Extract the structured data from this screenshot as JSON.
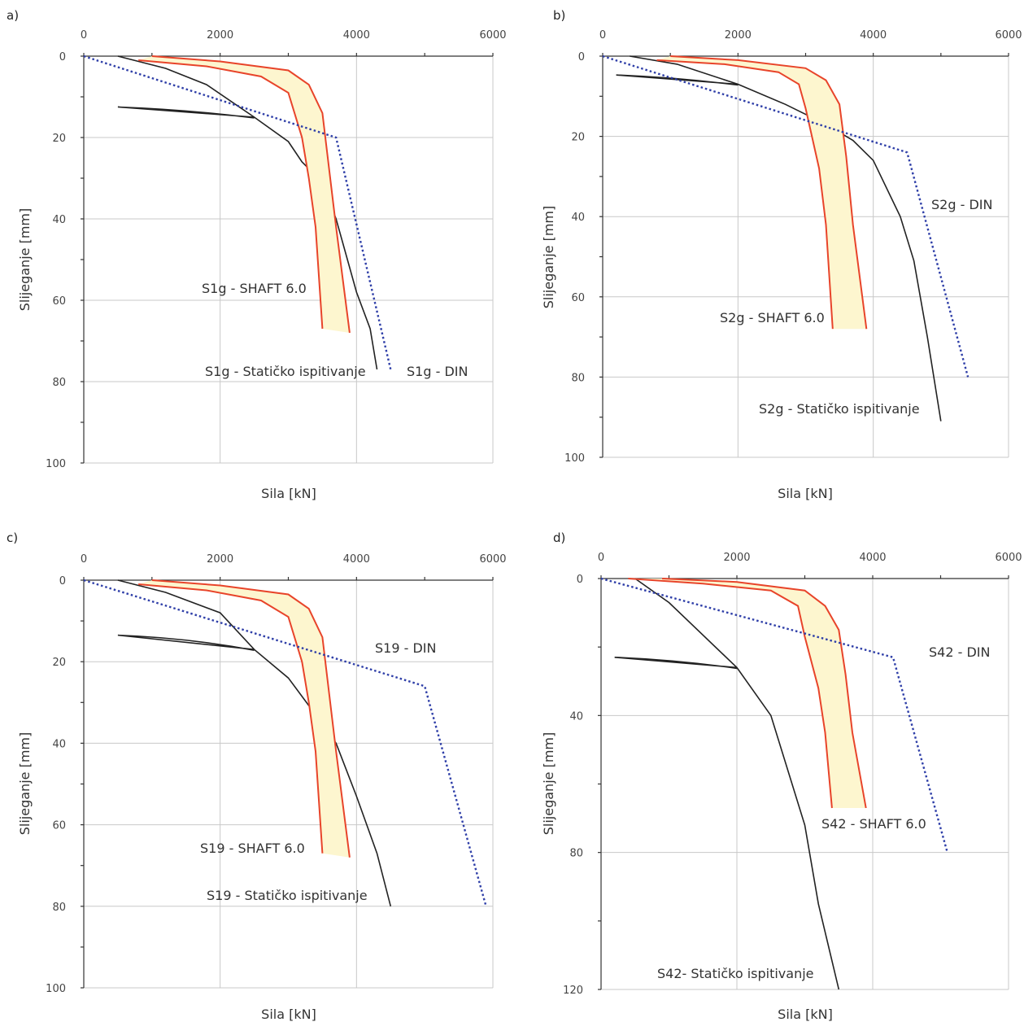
{
  "chart_data": [
    {
      "type": "line",
      "panel_label": "a)",
      "xlabel": "Sila [kN]",
      "ylabel": "Slijeganje [mm]",
      "xlim": [
        0,
        6000
      ],
      "ylim": [
        0,
        100
      ],
      "x_ticks": [
        "0",
        "2000",
        "4000",
        "6000"
      ],
      "y_ticks": [
        "0",
        "20",
        "40",
        "60",
        "80",
        "100"
      ],
      "y_inverted": true,
      "grid": true,
      "colors": {
        "static": "#222222",
        "shaft": "#e8442a",
        "din": "#2f3fa8",
        "band": "#fdf6cf"
      },
      "series": [
        {
          "name": "S1g - Statičko ispitivanje",
          "style": "solid",
          "color": "#222222",
          "points": [
            [
              500,
              0
            ],
            [
              1200,
              3
            ],
            [
              1800,
              7
            ],
            [
              2500,
              15
            ],
            [
              3000,
              21
            ],
            [
              3200,
              26
            ],
            [
              3500,
              31
            ],
            [
              3700,
              40
            ],
            [
              4000,
              58
            ],
            [
              4200,
              67
            ],
            [
              4300,
              77
            ]
          ],
          "unload": [
            [
              2500,
              15
            ],
            [
              500,
              12.5
            ],
            [
              2500,
              15
            ]
          ]
        },
        {
          "name": "S1g - SHAFT 6.0",
          "style": "solid",
          "color": "#e8442a",
          "lower": [
            [
              800,
              1
            ],
            [
              1800,
              2.5
            ],
            [
              2600,
              5
            ],
            [
              3000,
              9
            ],
            [
              3200,
              20
            ],
            [
              3300,
              30
            ],
            [
              3400,
              42
            ],
            [
              3500,
              67
            ]
          ],
          "upper": [
            [
              1000,
              0
            ],
            [
              2000,
              1.3
            ],
            [
              3000,
              3.5
            ],
            [
              3300,
              7
            ],
            [
              3500,
              14
            ],
            [
              3600,
              28
            ],
            [
              3700,
              42
            ],
            [
              3900,
              68
            ]
          ]
        },
        {
          "name": "S1g - DIN",
          "style": "dotted",
          "color": "#2f3fa8",
          "points": [
            [
              0,
              0
            ],
            [
              3700,
              20
            ],
            [
              4500,
              77
            ]
          ]
        }
      ],
      "annotations": [
        "S1g - SHAFT 6.0",
        "S1g - Statičko ispitivanje",
        "S1g - DIN"
      ]
    },
    {
      "type": "line",
      "panel_label": "b)",
      "xlabel": "Sila [kN]",
      "ylabel": "Slijeganje [mm]",
      "xlim": [
        0,
        6000
      ],
      "ylim": [
        0,
        100
      ],
      "x_ticks": [
        "0",
        "2000",
        "4000",
        "6000"
      ],
      "y_ticks": [
        "0",
        "20",
        "40",
        "60",
        "80",
        "100"
      ],
      "y_inverted": true,
      "grid": true,
      "series": [
        {
          "name": "S2g - Statičko ispitivanje",
          "style": "solid",
          "color": "#222222",
          "points": [
            [
              400,
              0
            ],
            [
              1100,
              2
            ],
            [
              2000,
              7
            ],
            [
              2700,
              12
            ],
            [
              3300,
              17
            ],
            [
              3700,
              21
            ],
            [
              4000,
              26
            ],
            [
              4400,
              40
            ],
            [
              4600,
              51
            ],
            [
              4800,
              70
            ],
            [
              5000,
              91
            ]
          ],
          "unload": [
            [
              2000,
              7
            ],
            [
              200,
              4.7
            ],
            [
              2000,
              7
            ]
          ]
        },
        {
          "name": "S2g - SHAFT 6.0",
          "style": "solid",
          "color": "#e8442a",
          "lower": [
            [
              800,
              1
            ],
            [
              1800,
              2
            ],
            [
              2600,
              4
            ],
            [
              2900,
              7
            ],
            [
              3000,
              13
            ],
            [
              3200,
              28
            ],
            [
              3300,
              42
            ],
            [
              3400,
              68
            ]
          ],
          "upper": [
            [
              1000,
              0
            ],
            [
              2000,
              1
            ],
            [
              3000,
              3
            ],
            [
              3300,
              6
            ],
            [
              3500,
              12
            ],
            [
              3600,
              25
            ],
            [
              3700,
              42
            ],
            [
              3900,
              68
            ]
          ]
        },
        {
          "name": "S2g - DIN",
          "style": "dotted",
          "color": "#2f3fa8",
          "points": [
            [
              0,
              0
            ],
            [
              4500,
              24
            ],
            [
              5400,
              80
            ]
          ]
        }
      ],
      "annotations": [
        "S2g - DIN",
        "S2g - SHAFT 6.0",
        "S2g - Statičko ispitivanje"
      ]
    },
    {
      "type": "line",
      "panel_label": "c)",
      "xlabel": "Sila [kN]",
      "ylabel": "Slijeganje [mm]",
      "xlim": [
        0,
        6000
      ],
      "ylim": [
        0,
        100
      ],
      "x_ticks": [
        "0",
        "2000",
        "4000",
        "6000"
      ],
      "y_ticks": [
        "0",
        "20",
        "40",
        "60",
        "80",
        "100"
      ],
      "y_inverted": true,
      "grid": true,
      "series": [
        {
          "name": "S19 - Statičko ispitivanje",
          "style": "solid",
          "color": "#222222",
          "points": [
            [
              500,
              0
            ],
            [
              1200,
              3
            ],
            [
              2000,
              8
            ],
            [
              2500,
              17
            ],
            [
              3000,
              24
            ],
            [
              3400,
              33
            ],
            [
              3700,
              40
            ],
            [
              4000,
              53
            ],
            [
              4300,
              67
            ],
            [
              4500,
              80
            ]
          ],
          "unload": [
            [
              2500,
              17
            ],
            [
              500,
              13.5
            ],
            [
              2500,
              17
            ]
          ]
        },
        {
          "name": "S19 - SHAFT 6.0",
          "style": "solid",
          "color": "#e8442a",
          "lower": [
            [
              800,
              1
            ],
            [
              1800,
              2.5
            ],
            [
              2600,
              5
            ],
            [
              3000,
              9
            ],
            [
              3200,
              20
            ],
            [
              3300,
              30
            ],
            [
              3400,
              42
            ],
            [
              3500,
              67
            ]
          ],
          "upper": [
            [
              1000,
              0
            ],
            [
              2000,
              1.3
            ],
            [
              3000,
              3.5
            ],
            [
              3300,
              7
            ],
            [
              3500,
              14
            ],
            [
              3600,
              28
            ],
            [
              3700,
              42
            ],
            [
              3900,
              68
            ]
          ]
        },
        {
          "name": "S19 - DIN",
          "style": "dotted",
          "color": "#2f3fa8",
          "points": [
            [
              0,
              0
            ],
            [
              5000,
              26
            ],
            [
              5900,
              80
            ]
          ]
        }
      ],
      "annotations": [
        "S19 - DIN",
        "S19 - SHAFT 6.0",
        "S19 - Statičko ispitivanje"
      ]
    },
    {
      "type": "line",
      "panel_label": "d)",
      "xlabel": "Sila [kN]",
      "ylabel": "Slijeganje [mm]",
      "xlim": [
        0,
        6000
      ],
      "ylim": [
        0,
        120
      ],
      "x_ticks": [
        "0",
        "2000",
        "4000",
        "6000"
      ],
      "y_ticks": [
        "0",
        "40",
        "80",
        "120"
      ],
      "y_inverted": true,
      "grid": true,
      "series": [
        {
          "name": "S42- Statičko ispitivanje",
          "style": "solid",
          "color": "#222222",
          "points": [
            [
              500,
              0
            ],
            [
              1000,
              7
            ],
            [
              2000,
              26
            ],
            [
              2500,
              40
            ],
            [
              3000,
              72
            ],
            [
              3200,
              95
            ],
            [
              3500,
              120
            ]
          ],
          "unload": [
            [
              2000,
              26
            ],
            [
              200,
              23
            ],
            [
              2000,
              26
            ]
          ]
        },
        {
          "name": "S42 - SHAFT 6.0",
          "style": "solid",
          "color": "#e8442a",
          "lower": [
            [
              400,
              0
            ],
            [
              1500,
              1.5
            ],
            [
              2500,
              3.5
            ],
            [
              2900,
              8
            ],
            [
              3000,
              17
            ],
            [
              3200,
              32
            ],
            [
              3300,
              45
            ],
            [
              3400,
              67
            ]
          ],
          "upper": [
            [
              900,
              0
            ],
            [
              2000,
              1
            ],
            [
              3000,
              3.5
            ],
            [
              3300,
              8
            ],
            [
              3500,
              15
            ],
            [
              3600,
              28
            ],
            [
              3700,
              45
            ],
            [
              3900,
              67
            ]
          ]
        },
        {
          "name": "S42 - DIN",
          "style": "dotted",
          "color": "#2f3fa8",
          "points": [
            [
              0,
              0
            ],
            [
              4300,
              23
            ],
            [
              5100,
              80
            ]
          ]
        }
      ],
      "annotations": [
        "S42 - DIN",
        "S42 - SHAFT 6.0",
        "S42- Statičko ispitivanje"
      ]
    }
  ]
}
